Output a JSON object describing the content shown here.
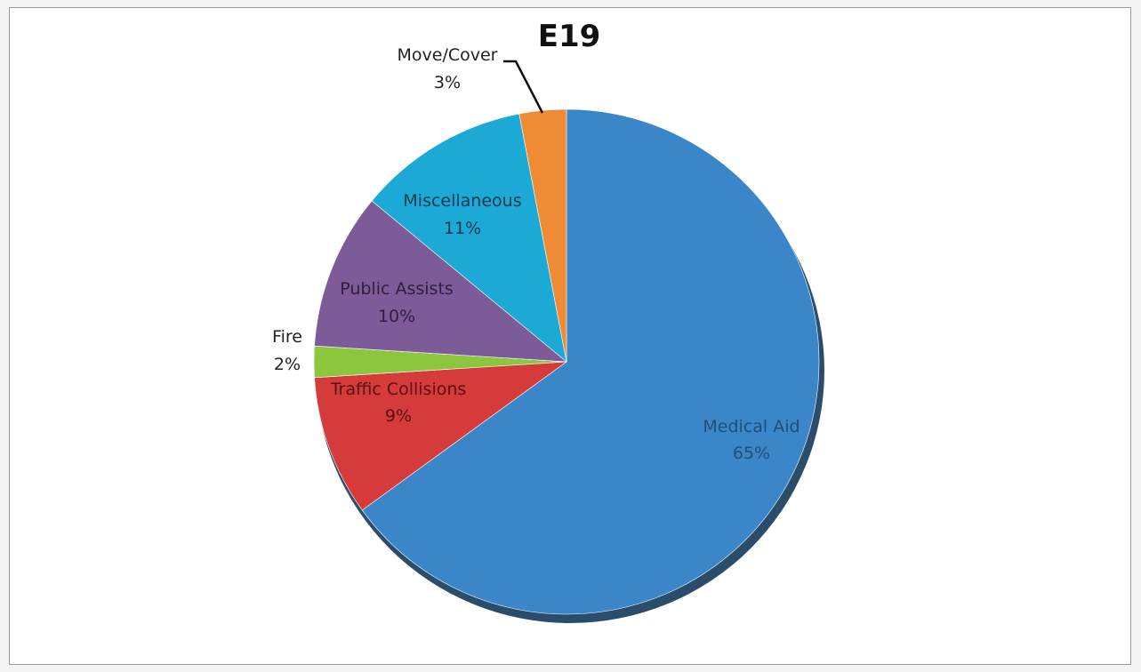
{
  "chart_data": {
    "type": "pie",
    "title": "E19",
    "slices": [
      {
        "label": "Medical Aid",
        "value": 65,
        "pct_text": "65%",
        "color": "#3b86c8"
      },
      {
        "label": "Traffic Collisions",
        "value": 9,
        "pct_text": "9%",
        "color": "#d63b3b"
      },
      {
        "label": "Fire",
        "value": 2,
        "pct_text": "2%",
        "color": "#8cc63f"
      },
      {
        "label": "Public Assists",
        "value": 10,
        "pct_text": "10%",
        "color": "#7d5b98"
      },
      {
        "label": "Miscellaneous",
        "value": 11,
        "pct_text": "11%",
        "color": "#1da9d6"
      },
      {
        "label": "Move/Cover",
        "value": 3,
        "pct_text": "3%",
        "color": "#ef8a35"
      }
    ],
    "legend": "none"
  }
}
